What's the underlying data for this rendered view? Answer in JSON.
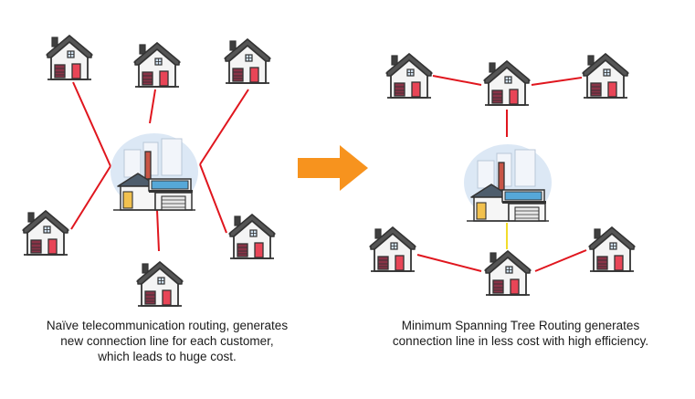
{
  "captions": {
    "left": [
      "Naïve telecommunication routing, generates",
      "new connection line for each customer,",
      "which leads to huge cost."
    ],
    "right": [
      "Minimum Spanning Tree Routing generates",
      "connection line in less cost with high efficiency."
    ]
  },
  "colors": {
    "connection_line": "#e0161e",
    "hub_link": "#f2dc2b",
    "arrow": "#f7931e",
    "house_roof": "#3f3f3f",
    "house_wall": "#f4f4f4",
    "house_door": "#e84557",
    "garage_door": "#8a3347",
    "hub_backdrop": "#dce8f5"
  },
  "icons": {
    "house": "house-icon",
    "hub": "central-office-building-icon",
    "arrow": "right-arrow-icon"
  }
}
